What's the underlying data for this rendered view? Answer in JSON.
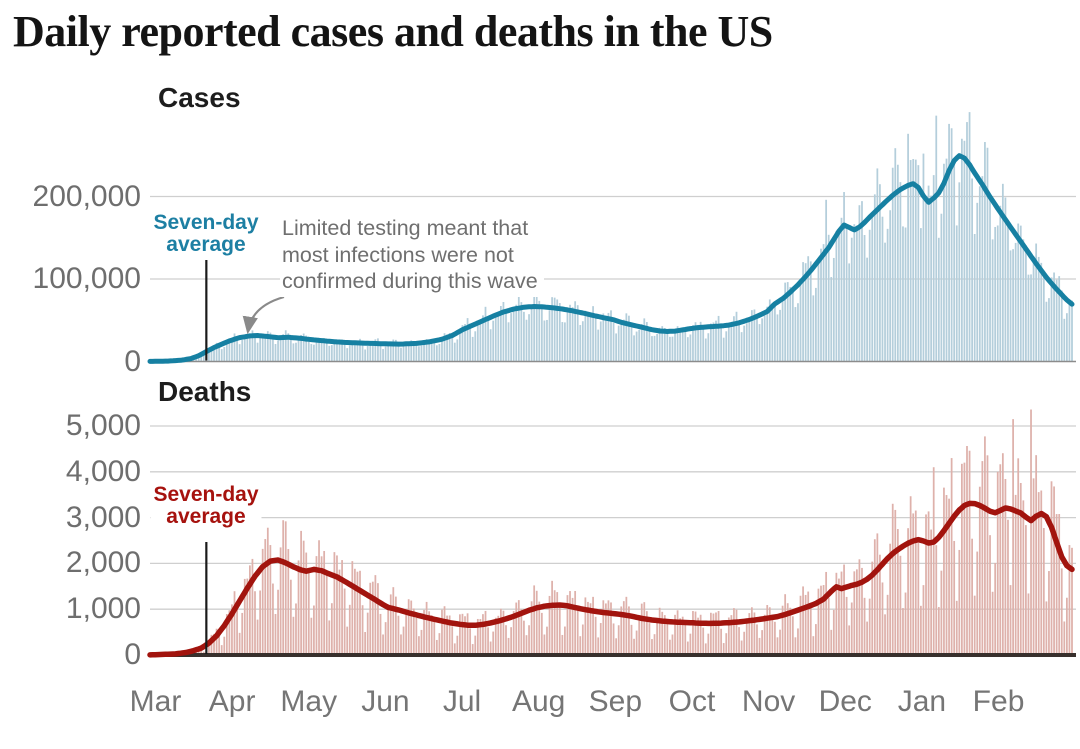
{
  "title": "Daily reported cases and deaths in the US",
  "x_axis": {
    "months": [
      "Mar",
      "Apr",
      "May",
      "Jun",
      "Jul",
      "Aug",
      "Sep",
      "Oct",
      "Nov",
      "Dec",
      "Jan",
      "Feb"
    ],
    "month_start_days": [
      0,
      31,
      61,
      92,
      122,
      153,
      184,
      214,
      245,
      275,
      306,
      337
    ],
    "total_days": 361
  },
  "annotation": {
    "lines": [
      "Limited testing meant that",
      "most infections were not",
      "confirmed during this wave"
    ],
    "color": "#6f6f6f",
    "arrow_color": "#8a8a8a"
  },
  "chart_data": [
    {
      "type": "bar",
      "panel": "cases",
      "title": "Cases",
      "ylim": [
        0,
        305000
      ],
      "yticks": [
        {
          "label": "200,000",
          "value": 200000
        },
        {
          "label": "100,000",
          "value": 100000
        },
        {
          "label": "0",
          "value": 0
        }
      ],
      "colors": {
        "bar": "#b4cedb",
        "line": "#1680a2",
        "label": "#1d7fa3",
        "gridline": "#cfcfcf",
        "baseline": "#8c8c8c",
        "pointer": "#1a1a1a"
      },
      "avg_label": {
        "lines": [
          "Seven-day",
          "average"
        ],
        "anchor_day": 22
      },
      "seven_day_average_points": [
        [
          0,
          100
        ],
        [
          7,
          500
        ],
        [
          12,
          1500
        ],
        [
          16,
          3500
        ],
        [
          19,
          7000
        ],
        [
          22,
          12000
        ],
        [
          25,
          17000
        ],
        [
          28,
          21000
        ],
        [
          31,
          25000
        ],
        [
          35,
          29000
        ],
        [
          39,
          31000
        ],
        [
          42,
          31500
        ],
        [
          46,
          30300
        ],
        [
          50,
          28800
        ],
        [
          54,
          29400
        ],
        [
          58,
          28400
        ],
        [
          61,
          27200
        ],
        [
          66,
          25600
        ],
        [
          71,
          24200
        ],
        [
          76,
          23200
        ],
        [
          82,
          22400
        ],
        [
          88,
          21800
        ],
        [
          92,
          21400
        ],
        [
          98,
          21100
        ],
        [
          104,
          22000
        ],
        [
          109,
          23800
        ],
        [
          114,
          27000
        ],
        [
          118,
          31500
        ],
        [
          122,
          38500
        ],
        [
          126,
          44000
        ],
        [
          130,
          49500
        ],
        [
          134,
          55000
        ],
        [
          138,
          60000
        ],
        [
          142,
          63500
        ],
        [
          146,
          65800
        ],
        [
          150,
          66700
        ],
        [
          153,
          66300
        ],
        [
          157,
          65200
        ],
        [
          161,
          63600
        ],
        [
          165,
          61400
        ],
        [
          169,
          58800
        ],
        [
          173,
          55900
        ],
        [
          177,
          53100
        ],
        [
          181,
          50600
        ],
        [
          184,
          47500
        ],
        [
          187,
          45200
        ],
        [
          190,
          43000
        ],
        [
          193,
          40800
        ],
        [
          196,
          38600
        ],
        [
          199,
          37000
        ],
        [
          202,
          36400
        ],
        [
          205,
          36900
        ],
        [
          208,
          38300
        ],
        [
          211,
          39900
        ],
        [
          214,
          41100
        ],
        [
          218,
          42100
        ],
        [
          222,
          42800
        ],
        [
          226,
          44100
        ],
        [
          230,
          46900
        ],
        [
          234,
          50900
        ],
        [
          238,
          56100
        ],
        [
          241,
          60600
        ],
        [
          244,
          70000
        ],
        [
          247,
          76000
        ],
        [
          250,
          84000
        ],
        [
          253,
          93000
        ],
        [
          256,
          103000
        ],
        [
          259,
          114000
        ],
        [
          262,
          126000
        ],
        [
          265,
          138000
        ],
        [
          267,
          148000
        ],
        [
          269,
          158000
        ],
        [
          271,
          165500
        ],
        [
          273,
          162500
        ],
        [
          275,
          159500
        ],
        [
          277,
          163000
        ],
        [
          279,
          168500
        ],
        [
          281,
          175000
        ],
        [
          284,
          184000
        ],
        [
          287,
          193000
        ],
        [
          290,
          201500
        ],
        [
          293,
          208500
        ],
        [
          296,
          213500
        ],
        [
          298,
          215500
        ],
        [
          300,
          211000
        ],
        [
          302,
          200500
        ],
        [
          304,
          193000
        ],
        [
          306,
          198000
        ],
        [
          308,
          204500
        ],
        [
          310,
          216000
        ],
        [
          312,
          231500
        ],
        [
          314,
          243500
        ],
        [
          316,
          249500
        ],
        [
          318,
          246500
        ],
        [
          320,
          238500
        ],
        [
          322,
          228500
        ],
        [
          325,
          214500
        ],
        [
          328,
          199500
        ],
        [
          331,
          185500
        ],
        [
          334,
          172000
        ],
        [
          336,
          163000
        ],
        [
          338,
          154000
        ],
        [
          341,
          141000
        ],
        [
          344,
          127500
        ],
        [
          347,
          114500
        ],
        [
          350,
          102000
        ],
        [
          353,
          91000
        ],
        [
          356,
          81000
        ],
        [
          358,
          74500
        ],
        [
          360,
          69500
        ]
      ],
      "daily_bars": {
        "weekly_pattern": [
          0.74,
          0.84,
          1.0,
          1.1,
          1.16,
          1.18,
          1.02
        ],
        "jitter_waves": [
          [
            0.07,
            1.93,
            0
          ],
          [
            0.05,
            0.71,
            2
          ]
        ],
        "spikes": [
          [
            264,
            196000
          ],
          [
            296,
            276000
          ],
          [
            302,
            252000
          ],
          [
            307,
            298000
          ],
          [
            312,
            288000
          ],
          [
            317,
            270000
          ]
        ]
      }
    },
    {
      "type": "bar",
      "panel": "deaths",
      "title": "Deaths",
      "ylim": [
        0,
        5500
      ],
      "yticks": [
        {
          "label": "5,000",
          "value": 5000
        },
        {
          "label": "4,000",
          "value": 4000
        },
        {
          "label": "3,000",
          "value": 3000
        },
        {
          "label": "2,000",
          "value": 2000
        },
        {
          "label": "1,000",
          "value": 1000
        },
        {
          "label": "0",
          "value": 0
        }
      ],
      "colors": {
        "bar": "#deb1ab",
        "line": "#a2140e",
        "label": "#a6120e",
        "gridline": "#cfcfcf",
        "baseline": "#38302d",
        "pointer": "#1a1a1a"
      },
      "avg_label": {
        "lines": [
          "Seven-day",
          "average"
        ],
        "anchor_day": 22
      },
      "seven_day_average_points": [
        [
          0,
          2
        ],
        [
          10,
          25
        ],
        [
          14,
          55
        ],
        [
          17,
          95
        ],
        [
          20,
          150
        ],
        [
          23,
          260
        ],
        [
          26,
          420
        ],
        [
          29,
          640
        ],
        [
          32,
          900
        ],
        [
          35,
          1180
        ],
        [
          38,
          1460
        ],
        [
          41,
          1720
        ],
        [
          44,
          1930
        ],
        [
          47,
          2050
        ],
        [
          50,
          2075
        ],
        [
          53,
          2010
        ],
        [
          56,
          1925
        ],
        [
          59,
          1855
        ],
        [
          61,
          1830
        ],
        [
          64,
          1870
        ],
        [
          67,
          1840
        ],
        [
          70,
          1770
        ],
        [
          73,
          1705
        ],
        [
          76,
          1610
        ],
        [
          80,
          1475
        ],
        [
          84,
          1340
        ],
        [
          88,
          1205
        ],
        [
          91,
          1100
        ],
        [
          93,
          1040
        ],
        [
          97,
          985
        ],
        [
          101,
          920
        ],
        [
          105,
          860
        ],
        [
          109,
          805
        ],
        [
          113,
          755
        ],
        [
          117,
          705
        ],
        [
          121,
          670
        ],
        [
          124,
          650
        ],
        [
          127,
          648
        ],
        [
          130,
          668
        ],
        [
          133,
          700
        ],
        [
          136,
          740
        ],
        [
          139,
          788
        ],
        [
          142,
          845
        ],
        [
          145,
          910
        ],
        [
          148,
          975
        ],
        [
          151,
          1030
        ],
        [
          154,
          1065
        ],
        [
          157,
          1085
        ],
        [
          160,
          1092
        ],
        [
          163,
          1075
        ],
        [
          166,
          1035
        ],
        [
          169,
          1000
        ],
        [
          173,
          960
        ],
        [
          177,
          928
        ],
        [
          181,
          905
        ],
        [
          184,
          885
        ],
        [
          188,
          848
        ],
        [
          192,
          800
        ],
        [
          196,
          765
        ],
        [
          200,
          740
        ],
        [
          204,
          722
        ],
        [
          208,
          712
        ],
        [
          212,
          702
        ],
        [
          214,
          697
        ],
        [
          218,
          690
        ],
        [
          222,
          694
        ],
        [
          226,
          706
        ],
        [
          230,
          722
        ],
        [
          234,
          748
        ],
        [
          238,
          778
        ],
        [
          242,
          812
        ],
        [
          245,
          838
        ],
        [
          248,
          885
        ],
        [
          251,
          940
        ],
        [
          254,
          1000
        ],
        [
          257,
          1060
        ],
        [
          260,
          1125
        ],
        [
          263,
          1220
        ],
        [
          266,
          1390
        ],
        [
          268,
          1490
        ],
        [
          270,
          1450
        ],
        [
          272,
          1485
        ],
        [
          274,
          1520
        ],
        [
          276,
          1545
        ],
        [
          278,
          1590
        ],
        [
          280,
          1655
        ],
        [
          282,
          1745
        ],
        [
          284,
          1860
        ],
        [
          286,
          1985
        ],
        [
          288,
          2110
        ],
        [
          290,
          2215
        ],
        [
          292,
          2300
        ],
        [
          294,
          2375
        ],
        [
          296,
          2440
        ],
        [
          298,
          2490
        ],
        [
          300,
          2520
        ],
        [
          302,
          2490
        ],
        [
          304,
          2445
        ],
        [
          306,
          2465
        ],
        [
          308,
          2570
        ],
        [
          310,
          2715
        ],
        [
          312,
          2875
        ],
        [
          314,
          3030
        ],
        [
          316,
          3165
        ],
        [
          318,
          3265
        ],
        [
          320,
          3310
        ],
        [
          322,
          3305
        ],
        [
          324,
          3265
        ],
        [
          326,
          3205
        ],
        [
          328,
          3140
        ],
        [
          330,
          3105
        ],
        [
          332,
          3155
        ],
        [
          334,
          3210
        ],
        [
          336,
          3190
        ],
        [
          338,
          3145
        ],
        [
          340,
          3100
        ],
        [
          342,
          3010
        ],
        [
          344,
          2935
        ],
        [
          346,
          3030
        ],
        [
          348,
          3090
        ],
        [
          350,
          3020
        ],
        [
          352,
          2790
        ],
        [
          354,
          2460
        ],
        [
          356,
          2140
        ],
        [
          358,
          1950
        ],
        [
          360,
          1870
        ]
      ],
      "daily_bars": {
        "weekly_pattern": [
          0.42,
          0.66,
          1.2,
          1.33,
          1.3,
          1.25,
          0.88
        ],
        "jitter_waves": [
          [
            0.09,
            1.93,
            0.5
          ],
          [
            0.06,
            0.71,
            2.3
          ]
        ],
        "spikes": [
          [
            306,
            4100
          ],
          [
            313,
            4300
          ],
          [
            320,
            4460
          ],
          [
            327,
            4360
          ],
          [
            331,
            4000
          ],
          [
            337,
            5150
          ],
          [
            344,
            5360
          ]
        ]
      }
    }
  ]
}
